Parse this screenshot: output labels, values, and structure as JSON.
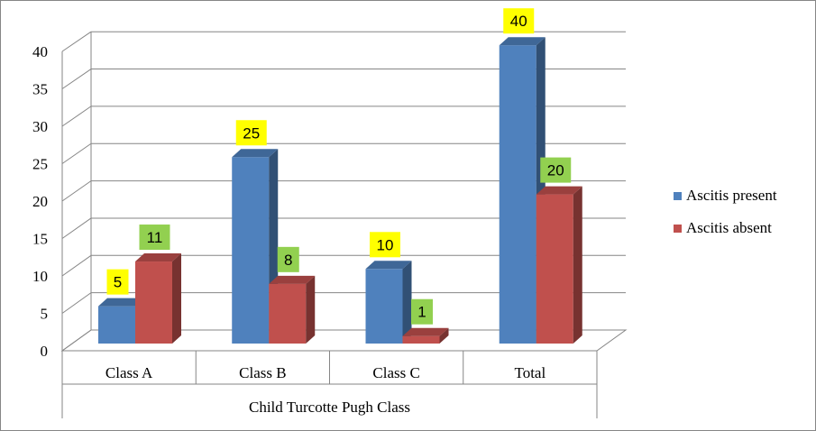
{
  "chart_data": {
    "type": "bar",
    "title": "",
    "xlabel": "Child Turcotte Pugh Class",
    "ylabel": "",
    "categories": [
      "Class A",
      "Class B",
      "Class C",
      "Total"
    ],
    "series": [
      {
        "name": "Ascitis present",
        "values": [
          5,
          25,
          10,
          40
        ],
        "color": "#4F81BD",
        "label_bg": "#FFFF00"
      },
      {
        "name": "Ascitis absent",
        "values": [
          11,
          8,
          1,
          20
        ],
        "color": "#C0504D",
        "label_bg": "#92D050"
      }
    ],
    "ylim": [
      0,
      40
    ],
    "yticks": [
      "0",
      "5",
      "10",
      "15",
      "20",
      "25",
      "30",
      "35",
      "40"
    ],
    "grid": true,
    "legend_position": "right",
    "style": "3d-clustered-column"
  }
}
